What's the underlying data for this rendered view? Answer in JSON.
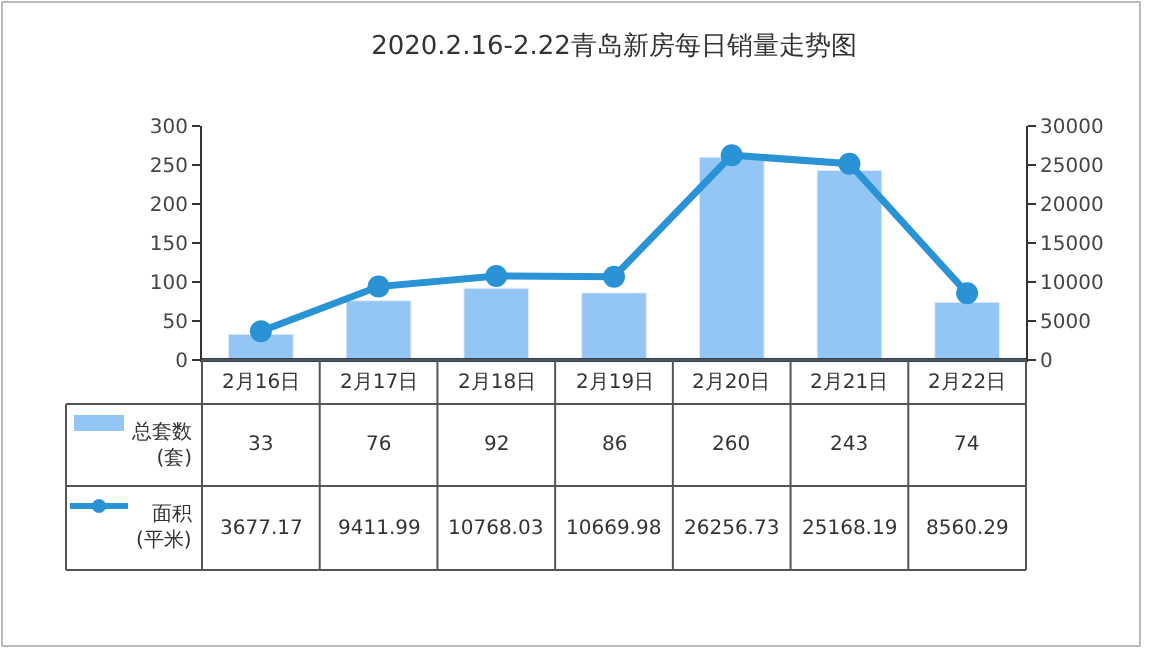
{
  "chart_data": {
    "type": "bar",
    "title": "2020.2.16-2.22青岛新房每日销量走势图",
    "categories": [
      "2月16日",
      "2月17日",
      "2月18日",
      "2月19日",
      "2月20日",
      "2月21日",
      "2月22日"
    ],
    "series": [
      {
        "name": "总套数\n(套)",
        "color": "#93c6f4",
        "values": [
          33,
          76,
          92,
          86,
          260,
          243,
          74
        ]
      },
      {
        "name": "面积\n(平米)",
        "type": "line",
        "axis": "y2",
        "color": "#2a93d5",
        "values": [
          3677.17,
          9411.99,
          10768.03,
          10669.98,
          26256.73,
          25168.19,
          8560.29
        ]
      }
    ],
    "ylim": [
      0,
      300
    ],
    "yticks": [
      0,
      50,
      100,
      150,
      200,
      250,
      300
    ],
    "y2lim": [
      0,
      30000
    ],
    "y2ticks": [
      0,
      5000,
      10000,
      15000,
      20000,
      25000,
      30000
    ],
    "data_labels": true,
    "legend": "bottom left",
    "marker": "circle",
    "line_style": "solid"
  }
}
